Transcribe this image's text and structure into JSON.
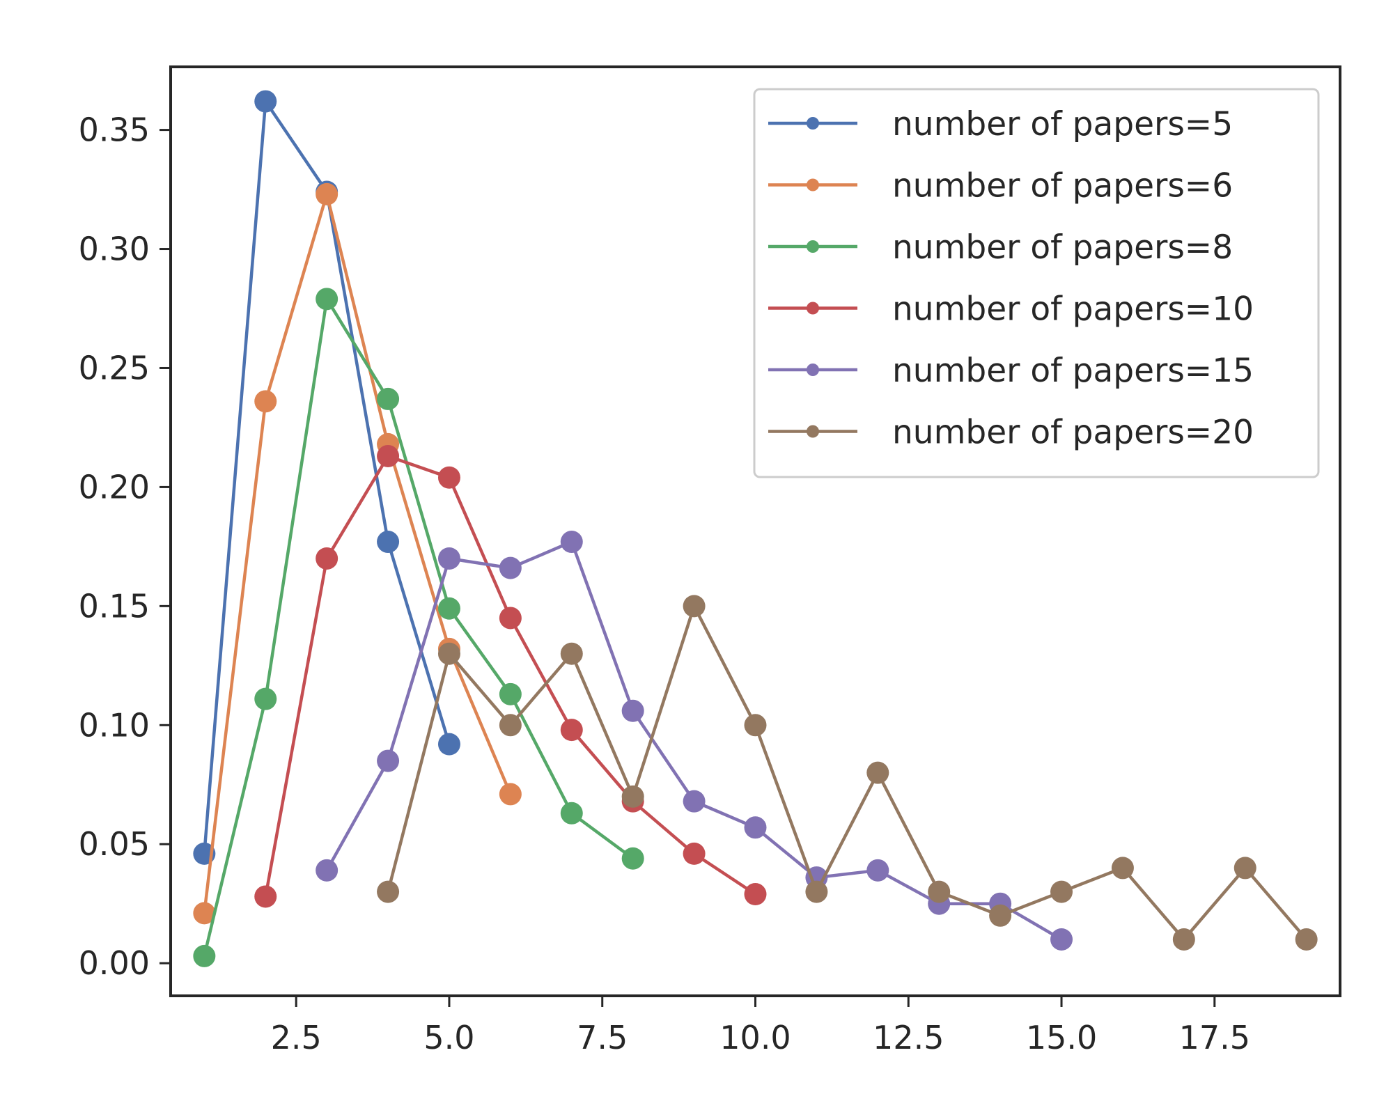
{
  "chart_data": {
    "type": "line",
    "title": "",
    "xlabel": "",
    "ylabel": "",
    "xlim": [
      0.45,
      19.55
    ],
    "ylim": [
      -0.0137,
      0.3765
    ],
    "xticks": [
      2.5,
      5.0,
      7.5,
      10.0,
      12.5,
      15.0,
      17.5
    ],
    "xtick_labels": [
      "2.5",
      "5.0",
      "7.5",
      "10.0",
      "12.5",
      "15.0",
      "17.5"
    ],
    "yticks": [
      0.0,
      0.05,
      0.1,
      0.15,
      0.2,
      0.25,
      0.3,
      0.35
    ],
    "ytick_labels": [
      "0.00",
      "0.05",
      "0.10",
      "0.15",
      "0.20",
      "0.25",
      "0.30",
      "0.35"
    ],
    "grid": false,
    "legend_position": "top-right",
    "series": [
      {
        "name": "number of papers=5",
        "color": "#4c72b0",
        "x": [
          1,
          2,
          3,
          4,
          5
        ],
        "y": [
          0.046,
          0.362,
          0.324,
          0.177,
          0.092
        ]
      },
      {
        "name": "number of papers=6",
        "color": "#dd8452",
        "x": [
          1,
          2,
          3,
          4,
          5,
          6
        ],
        "y": [
          0.021,
          0.236,
          0.323,
          0.218,
          0.132,
          0.071
        ]
      },
      {
        "name": "number of papers=8",
        "color": "#55a868",
        "x": [
          1,
          2,
          3,
          4,
          5,
          6,
          7,
          8
        ],
        "y": [
          0.003,
          0.111,
          0.279,
          0.237,
          0.149,
          0.113,
          0.063,
          0.044
        ]
      },
      {
        "name": "number of papers=10",
        "color": "#c44e52",
        "x": [
          2,
          3,
          4,
          5,
          6,
          7,
          8,
          9,
          10
        ],
        "y": [
          0.028,
          0.17,
          0.213,
          0.204,
          0.145,
          0.098,
          0.068,
          0.046,
          0.029
        ]
      },
      {
        "name": "number of papers=15",
        "color": "#8172b3",
        "x": [
          3,
          4,
          5,
          6,
          7,
          8,
          9,
          10,
          11,
          12,
          13,
          14,
          15
        ],
        "y": [
          0.039,
          0.085,
          0.17,
          0.166,
          0.177,
          0.106,
          0.068,
          0.057,
          0.036,
          0.039,
          0.025,
          0.025,
          0.01
        ]
      },
      {
        "name": "number of papers=20",
        "color": "#937860",
        "x": [
          4,
          5,
          6,
          7,
          8,
          9,
          10,
          11,
          12,
          13,
          14,
          15,
          16,
          17,
          18,
          19
        ],
        "y": [
          0.03,
          0.13,
          0.1,
          0.13,
          0.07,
          0.15,
          0.1,
          0.03,
          0.08,
          0.03,
          0.02,
          0.03,
          0.04,
          0.01,
          0.04,
          0.01
        ]
      }
    ]
  }
}
